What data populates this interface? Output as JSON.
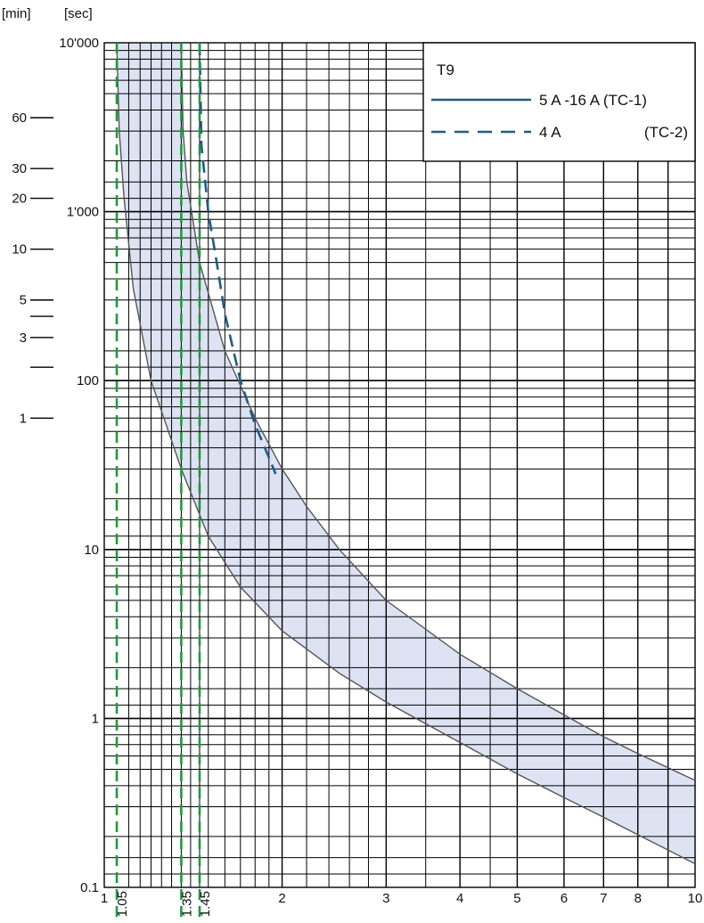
{
  "chart_data": {
    "type": "line",
    "x_scale": "log",
    "y_scale": "log",
    "xlim": [
      1,
      10
    ],
    "ylim": [
      0.1,
      10000
    ],
    "grid": true,
    "units": {
      "left": "[min]",
      "right": "[sec]"
    },
    "x_ticks": [
      {
        "v": 1,
        "label": "1"
      },
      {
        "v": 2,
        "label": "2"
      },
      {
        "v": 3,
        "label": "3"
      },
      {
        "v": 4,
        "label": "4"
      },
      {
        "v": 5,
        "label": "5"
      },
      {
        "v": 6,
        "label": "6"
      },
      {
        "v": 7,
        "label": "7"
      },
      {
        "v": 8,
        "label": "8"
      },
      {
        "v": 10,
        "label": "10"
      }
    ],
    "x_rotated_ticks": [
      {
        "v": 1.05,
        "label": "1.05"
      },
      {
        "v": 1.35,
        "label": "1.35"
      },
      {
        "v": 1.45,
        "label": "1.45"
      }
    ],
    "y_ticks_sec": [
      {
        "v": 10000,
        "label": "10'000"
      },
      {
        "v": 1000,
        "label": "1'000"
      },
      {
        "v": 100,
        "label": "100"
      },
      {
        "v": 10,
        "label": "10"
      },
      {
        "v": 1,
        "label": "1"
      },
      {
        "v": 0.1,
        "label": "0.1"
      }
    ],
    "y_ticks_min": [
      {
        "v": 60,
        "label": "60"
      },
      {
        "v": 30,
        "label": "30"
      },
      {
        "v": 20,
        "label": "20"
      },
      {
        "v": 10,
        "label": "10"
      },
      {
        "v": 5,
        "label": "5"
      },
      {
        "v": 4,
        "label": ""
      },
      {
        "v": 3,
        "label": "3"
      },
      {
        "v": 2,
        "label": ""
      },
      {
        "v": 1,
        "label": "1"
      }
    ],
    "x_grid": [
      1.1,
      1.15,
      1.2,
      1.25,
      1.3,
      1.35,
      1.4,
      1.45,
      1.5,
      1.6,
      1.7,
      1.8,
      1.9,
      2,
      2.2,
      2.4,
      2.6,
      2.8,
      3,
      3.5,
      4,
      4.5,
      5,
      6,
      7,
      8,
      9
    ],
    "y_grid_mantissas": [
      1,
      1.2,
      1.5,
      2,
      3,
      4,
      5,
      6,
      7,
      8,
      9
    ],
    "legend": {
      "title": "T9",
      "entries": [
        {
          "label": "5 A -16 A (TC-1)",
          "style": "solid"
        },
        {
          "label": "4 A",
          "code": "(TC-2)",
          "style": "dashed"
        }
      ]
    },
    "series": [
      {
        "id": "tc1_upper",
        "style": "solid",
        "points": [
          [
            1.35,
            10000
          ],
          [
            1.36,
            3000
          ],
          [
            1.38,
            1500
          ],
          [
            1.45,
            500
          ],
          [
            1.6,
            150
          ],
          [
            1.8,
            60
          ],
          [
            2.0,
            30
          ],
          [
            2.2,
            18
          ],
          [
            2.5,
            10
          ],
          [
            3,
            5
          ],
          [
            4,
            2.4
          ],
          [
            5,
            1.5
          ],
          [
            6,
            1.05
          ],
          [
            7,
            0.78
          ],
          [
            8,
            0.62
          ],
          [
            10,
            0.43
          ]
        ]
      },
      {
        "id": "tc1_lower",
        "style": "solid",
        "points": [
          [
            1.05,
            10000
          ],
          [
            1.06,
            3000
          ],
          [
            1.08,
            1200
          ],
          [
            1.12,
            350
          ],
          [
            1.2,
            100
          ],
          [
            1.35,
            30
          ],
          [
            1.5,
            12
          ],
          [
            1.7,
            6
          ],
          [
            2,
            3.3
          ],
          [
            2.5,
            1.85
          ],
          [
            3,
            1.25
          ],
          [
            4,
            0.72
          ],
          [
            5,
            0.47
          ],
          [
            6,
            0.34
          ],
          [
            7,
            0.26
          ],
          [
            8,
            0.205
          ],
          [
            10,
            0.138
          ]
        ]
      },
      {
        "id": "tc2_4a",
        "style": "dashed",
        "points": [
          [
            1.45,
            10000
          ],
          [
            1.46,
            2500
          ],
          [
            1.5,
            1000
          ],
          [
            1.55,
            500
          ],
          [
            1.6,
            250
          ],
          [
            1.7,
            100
          ],
          [
            1.8,
            55
          ],
          [
            1.9,
            35
          ],
          [
            1.95,
            28
          ]
        ]
      },
      {
        "id": "ref_1.05",
        "style": "dashed-vertical",
        "points": [
          [
            1.05,
            0.1
          ],
          [
            1.05,
            10000
          ]
        ]
      },
      {
        "id": "ref_1.35",
        "style": "dashed-vertical",
        "points": [
          [
            1.35,
            0.1
          ],
          [
            1.35,
            10000
          ]
        ]
      },
      {
        "id": "ref_1.45",
        "style": "dashed-vertical",
        "points": [
          [
            1.45,
            0.1
          ],
          [
            1.45,
            10000
          ]
        ]
      }
    ],
    "colors": {
      "grid": "#000000",
      "band": "#dde3f2",
      "tc1_line": "#555555",
      "tc2_line": "#1c5c8c",
      "reference_lines": "#1f9a3c",
      "legend_solid": "#1c5c8c",
      "legend_dashed": "#1c5c8c"
    }
  }
}
